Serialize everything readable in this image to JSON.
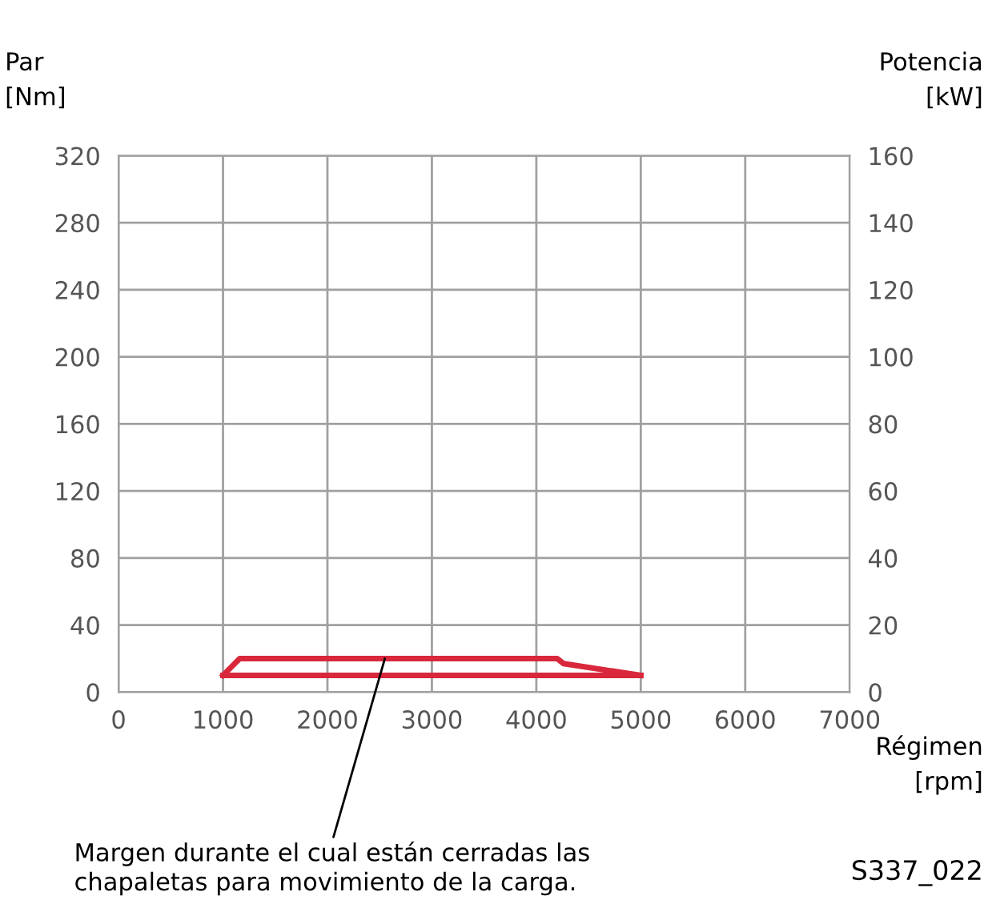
{
  "chart_data": {
    "type": "line",
    "series": [
      {
        "color": "#d9283c",
        "x": [
          1000,
          1160,
          4200,
          4260,
          5000
        ],
        "values": [
          10,
          20,
          20,
          17,
          10
        ]
      },
      {
        "color": "#d9283c",
        "x": [
          1000,
          5000
        ],
        "values": [
          10,
          10
        ]
      }
    ],
    "xlim": [
      0,
      7000
    ],
    "xticks": [
      0,
      1000,
      2000,
      3000,
      4000,
      5000,
      6000,
      7000
    ],
    "ylim": [
      0,
      320
    ],
    "yticks": [
      0,
      40,
      80,
      120,
      160,
      200,
      240,
      280,
      320
    ],
    "y2lim": [
      0,
      160
    ],
    "y2ticks": [
      0,
      20,
      40,
      60,
      80,
      100,
      120,
      140,
      160
    ],
    "xlabel": "Régimen\n[rpm]",
    "ylabel": "Par\n[Nm]",
    "y2label": "Potencia\n[kW]",
    "grid": true,
    "line_style": "solid",
    "marker": "none",
    "annotations": [
      {
        "text": "Margen durante el cual están cerradas las\nchapaletas para movimiento de la carga.",
        "x": 2550,
        "y": 20
      },
      "S337_022"
    ]
  }
}
